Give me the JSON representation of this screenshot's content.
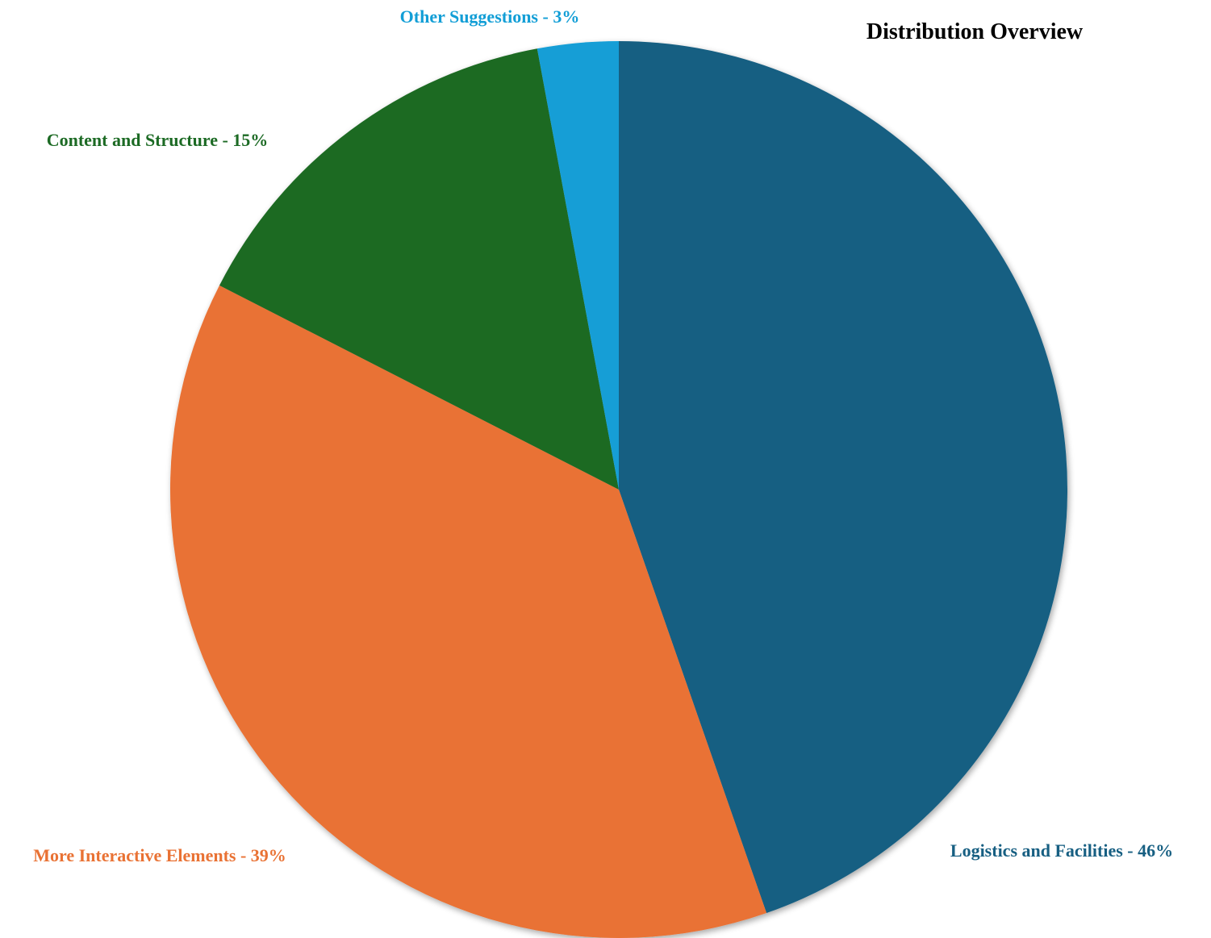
{
  "chart_data": {
    "type": "pie",
    "title": "Distribution Overview",
    "slices": [
      {
        "label": "Logistics and Facilities - 46%",
        "value": 46,
        "color": "#175f82"
      },
      {
        "label": "More Interactive Elements - 39%",
        "value": 39,
        "color": "#e97234"
      },
      {
        "label": "Content and Structure - 15%",
        "value": 15,
        "color": "#1c6a24"
      },
      {
        "label": "Other Suggestions - 3%",
        "value": 3,
        "color": "#129ed6"
      }
    ],
    "start": "12 o'clock",
    "direction": "clockwise"
  }
}
